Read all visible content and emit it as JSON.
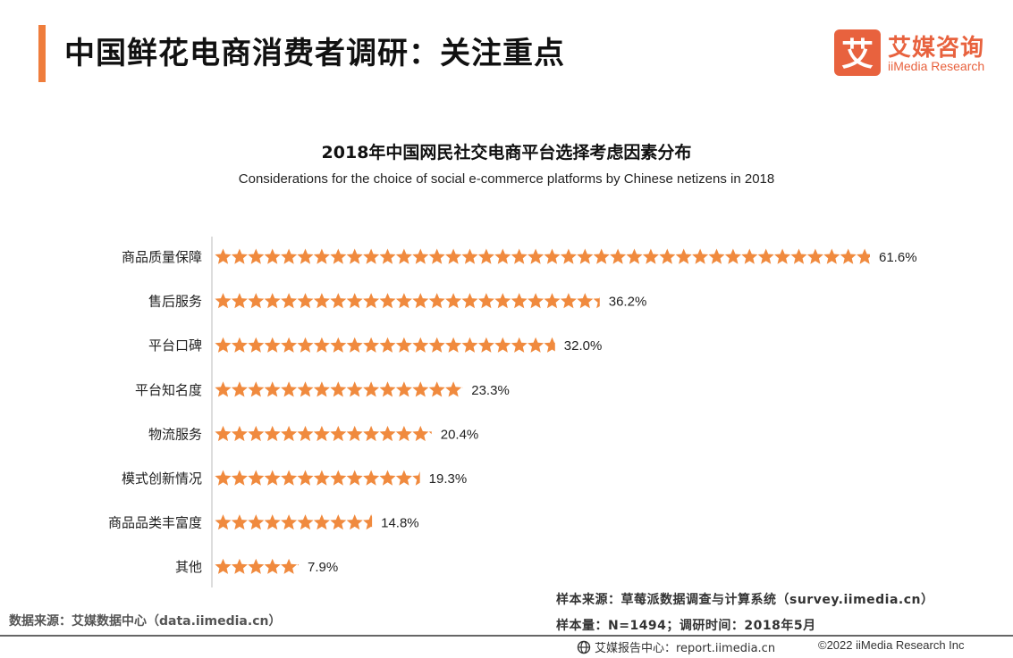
{
  "header": {
    "title": "中国鲜花电商消费者调研：关注重点"
  },
  "logo": {
    "mark": "艾",
    "name_cn": "艾媒咨询",
    "name_en": "iiMedia Research"
  },
  "colors": {
    "accent": "#ef7d3c",
    "star_fill": "#f08a3e",
    "logo": "#e8623e"
  },
  "chart_data": {
    "type": "bar",
    "mark": "star-icon",
    "title": "2018年中国网民社交电商平台选择考虑因素分布",
    "subtitle": "Considerations for the choice of social e-commerce platforms by Chinese netizens in 2018",
    "categories": [
      "商品质量保障",
      "售后服务",
      "平台口碑",
      "平台知名度",
      "物流服务",
      "模式创新情况",
      "商品品类丰富度",
      "其他"
    ],
    "values": [
      61.6,
      36.2,
      32.0,
      23.3,
      20.4,
      19.3,
      14.8,
      7.9
    ],
    "value_labels": [
      "61.6%",
      "36.2%",
      "32.0%",
      "23.3%",
      "20.4%",
      "19.3%",
      "14.8%",
      "7.9%"
    ],
    "unit": "%",
    "orientation": "horizontal",
    "xlim": [
      0,
      61.6
    ],
    "grid": false
  },
  "footer": {
    "data_source": "数据来源：艾媒数据中心（data.iimedia.cn）",
    "sample_source": "样本来源：草莓派数据调查与计算系统（survey.iimedia.cn）",
    "sample_size": "样本量：N=1494；调研时间：2018年5月",
    "report_center": "艾媒报告中心：report.iimedia.cn",
    "copyright": "©2022  iiMedia Research Inc"
  }
}
